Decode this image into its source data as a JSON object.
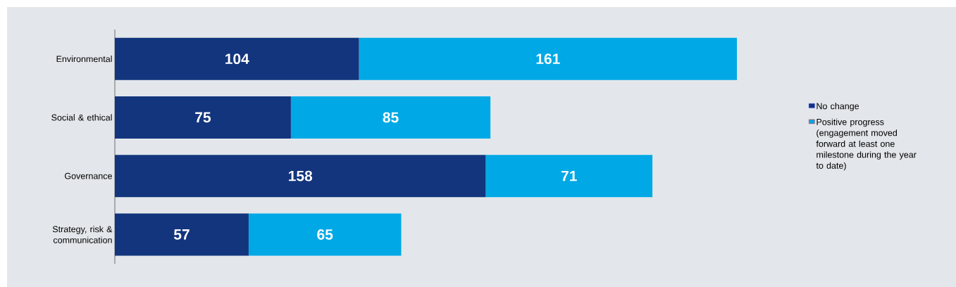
{
  "chart_data": {
    "type": "bar",
    "orientation": "horizontal",
    "stacked": true,
    "legend": "right",
    "categories": [
      "Environmental",
      "Social & ethical",
      "Governance",
      "Strategy, risk & communication"
    ],
    "series": [
      {
        "name": "No change",
        "color": "#12357d",
        "values": [
          104,
          75,
          158,
          57
        ],
        "value_labels": [
          "104",
          "75",
          "158",
          "57"
        ]
      },
      {
        "name": "Positive progress (engagement moved forward at least one milestone during the year to date)",
        "color": "#00a9e6",
        "values": [
          161,
          85,
          71,
          65
        ],
        "value_labels": [
          "161",
          "85",
          "71",
          "65"
        ]
      }
    ]
  }
}
